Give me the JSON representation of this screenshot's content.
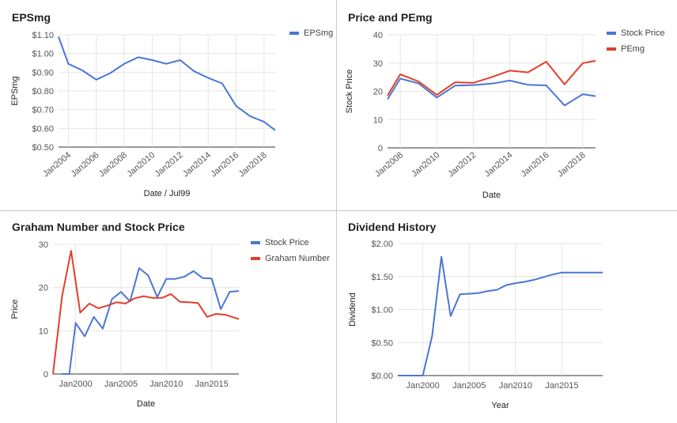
{
  "colors": {
    "blue": "#4a77d4",
    "red": "#e0402a",
    "grid": "#e4e4e4",
    "baseline": "#333333",
    "tick": "#555555",
    "title": "#222222"
  },
  "chart_data": [
    {
      "type": "line",
      "title": "EPSmg",
      "xlabel": "Date / Jul99",
      "ylabel": "EPSmg",
      "ylim": [
        0.5,
        1.1
      ],
      "xlim": [
        2003.3,
        2018.8
      ],
      "yticks": [
        "$1.10",
        "$1.00",
        "$0.90",
        "$0.80",
        "$0.70",
        "$0.60",
        "$0.50"
      ],
      "ytick_values": [
        1.1,
        1.0,
        0.9,
        0.8,
        0.7,
        0.6,
        0.5
      ],
      "xticks": [
        "Jan2004",
        "Jan2006",
        "Jan2008",
        "Jan2010",
        "Jan2012",
        "Jan2014",
        "Jan2016",
        "Jan2018"
      ],
      "xtick_values": [
        2004,
        2006,
        2008,
        2010,
        2012,
        2014,
        2016,
        2018
      ],
      "grid": true,
      "legend": "top-right",
      "series": [
        {
          "name": "EPSmg",
          "color": "#4a77d4",
          "x": [
            2003.3,
            2004,
            2005,
            2006,
            2007,
            2008,
            2009,
            2010,
            2011,
            2012,
            2013,
            2014,
            2015,
            2016,
            2017,
            2018,
            2018.8
          ],
          "y": [
            1.09,
            0.945,
            0.91,
            0.86,
            0.895,
            0.945,
            0.98,
            0.965,
            0.945,
            0.965,
            0.905,
            0.87,
            0.84,
            0.72,
            0.665,
            0.635,
            0.59
          ]
        }
      ]
    },
    {
      "type": "line",
      "title": "Price and PEmg",
      "xlabel": "Date",
      "ylabel": "Stock Price",
      "ylim": [
        0,
        40
      ],
      "xlim": [
        2007.3,
        2018.7
      ],
      "yticks": [
        "40",
        "30",
        "20",
        "10",
        "0"
      ],
      "ytick_values": [
        40,
        30,
        20,
        10,
        0
      ],
      "xticks": [
        "Jan2008",
        "Jan2010",
        "Jan2012",
        "Jan2014",
        "Jan2016",
        "Jan2018"
      ],
      "xtick_values": [
        2008,
        2010,
        2012,
        2014,
        2016,
        2018
      ],
      "grid": true,
      "legend": "top-right",
      "series": [
        {
          "name": "Stock Price",
          "color": "#4a77d4",
          "x": [
            2007.3,
            2008,
            2009,
            2010,
            2011,
            2012,
            2013,
            2014,
            2015,
            2016,
            2017,
            2018,
            2018.7
          ],
          "y": [
            17.2,
            24.5,
            22.8,
            17.8,
            22,
            22.2,
            22.7,
            23.8,
            22.3,
            22.1,
            15,
            19,
            18.3
          ]
        },
        {
          "name": "PEmg",
          "color": "#e0402a",
          "x": [
            2007.3,
            2008,
            2009,
            2010,
            2011,
            2012,
            2013,
            2014,
            2015,
            2016,
            2017,
            2018,
            2018.7
          ],
          "y": [
            18.5,
            26,
            23.5,
            18.7,
            23.2,
            23,
            25,
            27.3,
            26.7,
            30.5,
            22.5,
            30,
            30.8
          ]
        }
      ]
    },
    {
      "type": "line",
      "title": "Graham Number and Stock Price",
      "xlabel": "Date",
      "ylabel": "Price",
      "ylim": [
        0,
        30
      ],
      "xlim": [
        1997.5,
        2018.0
      ],
      "yticks": [
        "30",
        "20",
        "10",
        "0"
      ],
      "ytick_values": [
        30,
        20,
        10,
        0
      ],
      "xticks": [
        "Jan2000",
        "Jan2005",
        "Jan2010",
        "Jan2015"
      ],
      "xtick_values": [
        2000,
        2005,
        2010,
        2015
      ],
      "grid": true,
      "legend": "top-right",
      "series": [
        {
          "name": "Stock Price",
          "color": "#4a77d4",
          "x": [
            1998.5,
            1999.3,
            2000,
            2001,
            2002,
            2003,
            2004,
            2005,
            2006,
            2007,
            2008,
            2009,
            2010,
            2011,
            2012,
            2013,
            2014,
            2015,
            2016,
            2017,
            2018
          ],
          "y": [
            0,
            0,
            11.8,
            8.7,
            13.2,
            10.5,
            17.3,
            19,
            16.8,
            24.5,
            22.8,
            17.8,
            22,
            22,
            22.5,
            23.8,
            22.2,
            22.1,
            15,
            19,
            19.2
          ]
        },
        {
          "name": "Graham Number",
          "color": "#e0402a",
          "x": [
            1997.5,
            1998.5,
            1999.5,
            2000.5,
            2001.5,
            2002.5,
            2003.5,
            2004.5,
            2005.5,
            2006.5,
            2007.5,
            2008.5,
            2009.5,
            2010.5,
            2011.5,
            2012.5,
            2013.5,
            2014.5,
            2015.5,
            2016.5,
            2018
          ],
          "y": [
            0,
            18,
            28.5,
            14.2,
            16.3,
            15.2,
            15.8,
            16.6,
            16.3,
            17.5,
            18,
            17.6,
            17.6,
            18.5,
            16.7,
            16.6,
            16.4,
            13.2,
            13.9,
            13.7,
            12.7
          ]
        }
      ]
    },
    {
      "type": "line",
      "title": "Dividend History",
      "xlabel": "Year",
      "ylabel": "Dividend",
      "ylim": [
        0,
        2
      ],
      "xlim": [
        1997.3,
        2019.4
      ],
      "yticks": [
        "$2.00",
        "$1.50",
        "$1.00",
        "$0.50",
        "$0.00"
      ],
      "ytick_values": [
        2,
        1.5,
        1,
        0.5,
        0
      ],
      "xticks": [
        "Jan2000",
        "Jan2005",
        "Jan2010",
        "Jan2015"
      ],
      "xtick_values": [
        2000,
        2005,
        2010,
        2015
      ],
      "grid": true,
      "legend": "none",
      "series": [
        {
          "color": "#4a77d4",
          "x": [
            1997.3,
            1999,
            2000,
            2001,
            2002,
            2003,
            2004,
            2005,
            2006,
            2007,
            2008,
            2009,
            2010,
            2011,
            2012,
            2013,
            2014,
            2015,
            2016,
            2017,
            2018,
            2019.4
          ],
          "y": [
            0,
            0,
            0,
            0.6,
            1.8,
            0.9,
            1.23,
            1.24,
            1.25,
            1.28,
            1.3,
            1.37,
            1.4,
            1.42,
            1.45,
            1.49,
            1.53,
            1.56,
            1.56,
            1.56,
            1.56,
            1.56
          ]
        }
      ]
    }
  ]
}
